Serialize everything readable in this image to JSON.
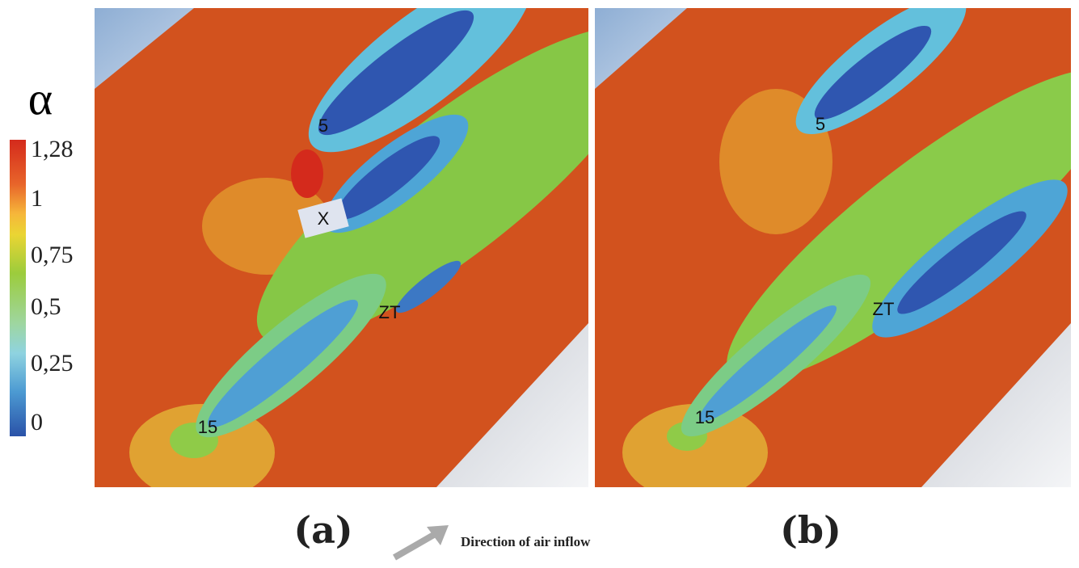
{
  "legend": {
    "symbol": "α",
    "ticks": [
      "1,28",
      "1",
      "0,75",
      "0,5",
      "0,25",
      "0"
    ]
  },
  "panels": [
    {
      "label": "(a)",
      "buildings": [
        "5",
        "X",
        "ZT",
        "15"
      ]
    },
    {
      "label": "(b)",
      "buildings": [
        "5",
        "ZT",
        "15"
      ]
    }
  ],
  "arrow_caption": "Direction of air inflow"
}
